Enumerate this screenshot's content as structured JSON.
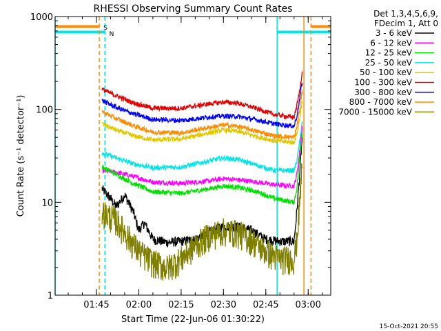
{
  "chart_data": {
    "type": "line",
    "title": "RHESSI Observing Summary Count Rates",
    "xlabel": "Start Time (22-Jun-06 01:30:22)",
    "ylabel": "Count Rate (s⁻¹ detector⁻¹)",
    "yscale": "log",
    "ylim": [
      1,
      1000
    ],
    "xlim": [
      "01:30:22",
      "03:08"
    ],
    "x_ticks": [
      "01:45",
      "02:00",
      "02:15",
      "02:30",
      "02:45",
      "03:00"
    ],
    "y_ticks": [
      "1",
      "10",
      "100",
      "1000"
    ],
    "legend_header": [
      "Det 1,3,4,5,6,9,",
      "FDecim 1, Att 0"
    ],
    "legend_position": "right",
    "footer_date": "15-Oct-2021 20:55",
    "flag_labels": {
      "saa": "S",
      "night": "N"
    },
    "flags": [
      {
        "name": "SAA",
        "label": "S",
        "color": "#ff8c00",
        "start": "01:30:22",
        "end": "01:46",
        "resume": "03:01",
        "level": 780
      },
      {
        "name": "Night",
        "label": "N",
        "color": "#00e5e5",
        "start": "01:30:22",
        "end": "01:48",
        "resume": "02:49",
        "level": 680
      }
    ],
    "vlines": [
      {
        "time": "01:30:22",
        "color": "#00e5e5",
        "style": "solid"
      },
      {
        "time": "01:46",
        "color": "#ff8c00",
        "style": "dashed"
      },
      {
        "time": "01:48",
        "color": "#00e5e5",
        "style": "dashed"
      },
      {
        "time": "02:49",
        "color": "#00e5e5",
        "style": "solid"
      },
      {
        "time": "02:58:30",
        "color": "#ff8c00",
        "style": "solid"
      },
      {
        "time": "03:01",
        "color": "#ff8c00",
        "style": "dashed"
      }
    ],
    "series": [
      {
        "name": "3 - 6 keV",
        "color": "#000000",
        "points": [
          [
            "01:47",
            14
          ],
          [
            "01:50",
            11
          ],
          [
            "01:52",
            9
          ],
          [
            "01:55",
            12
          ],
          [
            "01:58",
            8
          ],
          [
            "02:00",
            5
          ],
          [
            "02:02",
            6
          ],
          [
            "02:05",
            4
          ],
          [
            "02:10",
            3.7
          ],
          [
            "02:15",
            3.8
          ],
          [
            "02:20",
            4
          ],
          [
            "02:25",
            4.8
          ],
          [
            "02:30",
            5.5
          ],
          [
            "02:35",
            5.5
          ],
          [
            "02:40",
            5
          ],
          [
            "02:45",
            4
          ],
          [
            "02:50",
            3.8
          ],
          [
            "02:55",
            3.8
          ],
          [
            "02:56",
            8
          ],
          [
            "02:57",
            20
          ],
          [
            "02:58",
            55
          ]
        ]
      },
      {
        "name": "6 - 12 keV",
        "color": "#ff00ff",
        "points": [
          [
            "01:47",
            22
          ],
          [
            "01:52",
            21
          ],
          [
            "01:58",
            19
          ],
          [
            "02:05",
            16.5
          ],
          [
            "02:15",
            16
          ],
          [
            "02:25",
            17
          ],
          [
            "02:30",
            18
          ],
          [
            "02:35",
            17.5
          ],
          [
            "02:42",
            16.5
          ],
          [
            "02:48",
            15.5
          ],
          [
            "02:55",
            15
          ],
          [
            "02:56",
            20
          ],
          [
            "02:57",
            35
          ],
          [
            "02:58",
            70
          ]
        ]
      },
      {
        "name": "12 - 25 keV",
        "color": "#00e000",
        "points": [
          [
            "01:47",
            24
          ],
          [
            "01:52",
            20
          ],
          [
            "01:58",
            16
          ],
          [
            "02:05",
            13
          ],
          [
            "02:15",
            12.5
          ],
          [
            "02:25",
            14
          ],
          [
            "02:30",
            15
          ],
          [
            "02:35",
            14.5
          ],
          [
            "02:42",
            13
          ],
          [
            "02:48",
            11
          ],
          [
            "02:55",
            10
          ],
          [
            "02:56",
            14
          ],
          [
            "02:57",
            30
          ],
          [
            "02:58",
            60
          ]
        ]
      },
      {
        "name": "25 - 50 keV",
        "color": "#00e5e5",
        "points": [
          [
            "01:47",
            34
          ],
          [
            "01:52",
            30
          ],
          [
            "01:58",
            26
          ],
          [
            "02:05",
            23.5
          ],
          [
            "02:15",
            24
          ],
          [
            "02:25",
            28
          ],
          [
            "02:30",
            30
          ],
          [
            "02:35",
            29
          ],
          [
            "02:42",
            25
          ],
          [
            "02:48",
            22
          ],
          [
            "02:55",
            22
          ],
          [
            "02:56",
            28
          ],
          [
            "02:57",
            45
          ],
          [
            "02:58",
            80
          ]
        ]
      },
      {
        "name": "50 - 100 keV",
        "color": "#e0c800",
        "points": [
          [
            "01:47",
            70
          ],
          [
            "01:52",
            60
          ],
          [
            "01:58",
            52
          ],
          [
            "02:05",
            47
          ],
          [
            "02:15",
            48
          ],
          [
            "02:25",
            56
          ],
          [
            "02:30",
            60
          ],
          [
            "02:35",
            58
          ],
          [
            "02:42",
            51
          ],
          [
            "02:48",
            46
          ],
          [
            "02:55",
            44
          ],
          [
            "02:56",
            55
          ],
          [
            "02:57",
            80
          ],
          [
            "02:58",
            130
          ]
        ]
      },
      {
        "name": "100 - 300 keV",
        "color": "#e00000",
        "points": [
          [
            "01:47",
            165
          ],
          [
            "01:52",
            140
          ],
          [
            "01:58",
            118
          ],
          [
            "02:05",
            103
          ],
          [
            "02:15",
            103
          ],
          [
            "02:25",
            115
          ],
          [
            "02:30",
            120
          ],
          [
            "02:35",
            117
          ],
          [
            "02:42",
            102
          ],
          [
            "02:48",
            88
          ],
          [
            "02:55",
            82
          ],
          [
            "02:56",
            110
          ],
          [
            "02:57",
            160
          ],
          [
            "02:58",
            270
          ]
        ]
      },
      {
        "name": "300 - 800 keV",
        "color": "#0000ff",
        "points": [
          [
            "01:47",
            125
          ],
          [
            "01:52",
            105
          ],
          [
            "01:58",
            90
          ],
          [
            "02:05",
            78
          ],
          [
            "02:15",
            76
          ],
          [
            "02:25",
            83
          ],
          [
            "02:30",
            85
          ],
          [
            "02:35",
            84
          ],
          [
            "02:42",
            77
          ],
          [
            "02:48",
            70
          ],
          [
            "02:55",
            66
          ],
          [
            "02:56",
            85
          ],
          [
            "02:57",
            130
          ],
          [
            "02:58",
            210
          ]
        ]
      },
      {
        "name": "800 - 7000 keV",
        "color": "#ff8c00",
        "points": [
          [
            "01:47",
            95
          ],
          [
            "01:52",
            80
          ],
          [
            "01:58",
            67
          ],
          [
            "02:05",
            57
          ],
          [
            "02:15",
            56
          ],
          [
            "02:25",
            64
          ],
          [
            "02:30",
            68
          ],
          [
            "02:35",
            66
          ],
          [
            "02:42",
            58
          ],
          [
            "02:48",
            52
          ],
          [
            "02:55",
            50
          ],
          [
            "02:56",
            65
          ],
          [
            "02:57",
            100
          ],
          [
            "02:58",
            170
          ]
        ]
      },
      {
        "name": "7000 - 15000 keV",
        "color": "#808000",
        "points": [
          [
            "01:47",
            8
          ],
          [
            "01:52",
            6.5
          ],
          [
            "01:57",
            4
          ],
          [
            "02:00",
            3
          ],
          [
            "02:05",
            2.3
          ],
          [
            "02:10",
            2
          ],
          [
            "02:15",
            2.5
          ],
          [
            "02:20",
            3.5
          ],
          [
            "02:25",
            4.5
          ],
          [
            "02:30",
            5
          ],
          [
            "02:35",
            4.8
          ],
          [
            "02:40",
            4
          ],
          [
            "02:45",
            3
          ],
          [
            "02:50",
            2.5
          ],
          [
            "02:55",
            2.5
          ],
          [
            "02:56",
            4
          ],
          [
            "02:57",
            10
          ],
          [
            "02:58",
            30
          ]
        ]
      }
    ]
  }
}
